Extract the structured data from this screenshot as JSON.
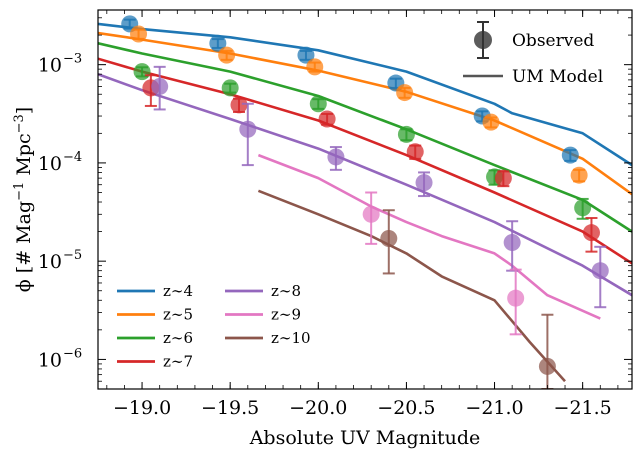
{
  "chart_data": {
    "type": "line",
    "xlabel": "Absolute UV Magnitude",
    "ylabel_parts": {
      "a": "ϕ [# Mag",
      "b": "−1",
      "c": " Mpc",
      "d": "−3",
      "e": "]"
    },
    "x_ticks": [
      {
        "value": -19.0,
        "label": "−19.0"
      },
      {
        "value": -19.5,
        "label": "−19.5"
      },
      {
        "value": -20.0,
        "label": "−20.0"
      },
      {
        "value": -20.5,
        "label": "−20.5"
      },
      {
        "value": -21.0,
        "label": "−21.0"
      },
      {
        "value": -21.5,
        "label": "−21.5"
      }
    ],
    "y_ticks": [
      {
        "value": 1e-06,
        "base": "10",
        "exp": "−6"
      },
      {
        "value": 1e-05,
        "base": "10",
        "exp": "−5"
      },
      {
        "value": 0.0001,
        "base": "10",
        "exp": "−4"
      },
      {
        "value": 0.001,
        "base": "10",
        "exp": "−3"
      }
    ],
    "xlim": [
      -18.75,
      -21.78
    ],
    "ylim": [
      5e-07,
      0.0036
    ],
    "yscale": "log",
    "legend_markers": {
      "observed": "Observed",
      "model": "UM Model",
      "position": "top-right"
    },
    "series": [
      {
        "name": "z∼4",
        "color": "#1f77b4",
        "model": [
          [
            -18.75,
            0.0026
          ],
          [
            -19.0,
            0.0023
          ],
          [
            -19.5,
            0.0019
          ],
          [
            -20.0,
            0.0014
          ],
          [
            -20.5,
            0.00085
          ],
          [
            -21.0,
            0.0004
          ],
          [
            -21.1,
            0.00032
          ],
          [
            -21.5,
            0.0002
          ],
          [
            -21.78,
            9.5e-05
          ]
        ],
        "observed": [
          {
            "x": -18.93,
            "y": 0.0026,
            "err": [
              0.00027,
              0.00027
            ]
          },
          {
            "x": -19.43,
            "y": 0.00165,
            "err": [
              0.00017,
              0.00017
            ]
          },
          {
            "x": -19.93,
            "y": 0.00125,
            "err": [
              0.00013,
              0.00013
            ]
          },
          {
            "x": -20.44,
            "y": 0.00065,
            "err": [
              7e-05,
              7e-05
            ]
          },
          {
            "x": -20.93,
            "y": 0.0003,
            "err": [
              3.5e-05,
              3.5e-05
            ]
          },
          {
            "x": -21.43,
            "y": 0.00012,
            "err": [
              1.5e-05,
              1.5e-05
            ]
          }
        ]
      },
      {
        "name": "z∼5",
        "color": "#ff7f0e",
        "model": [
          [
            -18.75,
            0.0021
          ],
          [
            -19.0,
            0.0018
          ],
          [
            -19.5,
            0.0013
          ],
          [
            -20.0,
            0.00087
          ],
          [
            -20.5,
            0.00053
          ],
          [
            -21.0,
            0.00027
          ],
          [
            -21.5,
            0.00011
          ],
          [
            -21.78,
            4.8e-05
          ]
        ],
        "observed": [
          {
            "x": -18.98,
            "y": 0.00205,
            "err": [
              0.00022,
              0.00022
            ]
          },
          {
            "x": -19.48,
            "y": 0.00125,
            "err": [
              0.00013,
              0.00013
            ]
          },
          {
            "x": -19.98,
            "y": 0.00095,
            "err": [
              0.0001,
              0.0001
            ]
          },
          {
            "x": -20.49,
            "y": 0.00052,
            "err": [
              6e-05,
              6e-05
            ]
          },
          {
            "x": -20.98,
            "y": 0.00026,
            "err": [
              3e-05,
              3e-05
            ]
          },
          {
            "x": -21.48,
            "y": 7.5e-05,
            "err": [
              1e-05,
              1e-05
            ]
          }
        ]
      },
      {
        "name": "z∼6",
        "color": "#2ca02c",
        "model": [
          [
            -18.75,
            0.00165
          ],
          [
            -19.0,
            0.0013
          ],
          [
            -19.5,
            0.00085
          ],
          [
            -20.0,
            0.00048
          ],
          [
            -20.5,
            0.00022
          ],
          [
            -21.0,
            9.5e-05
          ],
          [
            -21.5,
            4.2e-05
          ],
          [
            -21.78,
            2e-05
          ]
        ],
        "observed": [
          {
            "x": -19.0,
            "y": 0.00085,
            "err": [
              9e-05,
              9e-05
            ]
          },
          {
            "x": -19.5,
            "y": 0.00058,
            "err": [
              6e-05,
              6e-05
            ]
          },
          {
            "x": -20.0,
            "y": 0.0004,
            "err": [
              4.5e-05,
              4.5e-05
            ]
          },
          {
            "x": -20.5,
            "y": 0.000195,
            "err": [
              2.5e-05,
              2.5e-05
            ]
          },
          {
            "x": -21.0,
            "y": 7.2e-05,
            "err": [
              1.2e-05,
              1.2e-05
            ]
          },
          {
            "x": -21.5,
            "y": 3.5e-05,
            "err": [
              8e-06,
              8e-06
            ]
          }
        ]
      },
      {
        "name": "z∼7",
        "color": "#d62728",
        "model": [
          [
            -18.75,
            0.00115
          ],
          [
            -19.0,
            0.00085
          ],
          [
            -19.5,
            0.0005
          ],
          [
            -20.0,
            0.00027
          ],
          [
            -20.5,
            0.00012
          ],
          [
            -21.0,
            5e-05
          ],
          [
            -21.5,
            2e-05
          ],
          [
            -21.78,
            9.5e-06
          ]
        ],
        "observed": [
          {
            "x": -19.05,
            "y": 0.00058,
            "err": [
              0.0002,
              0.0002
            ]
          },
          {
            "x": -19.55,
            "y": 0.00039,
            "err": [
              6e-05,
              6e-05
            ]
          },
          {
            "x": -20.05,
            "y": 0.00028,
            "err": [
              3.5e-05,
              3.5e-05
            ]
          },
          {
            "x": -20.55,
            "y": 0.00013,
            "err": [
              2e-05,
              2e-05
            ]
          },
          {
            "x": -21.05,
            "y": 7e-05,
            "err": [
              1.2e-05,
              1.2e-05
            ]
          },
          {
            "x": -21.55,
            "y": 1.95e-05,
            "err": [
              7e-06,
              8e-06
            ]
          }
        ]
      },
      {
        "name": "z∼8",
        "color": "#9467bd",
        "model": [
          [
            -18.75,
            0.0008
          ],
          [
            -19.0,
            0.00055
          ],
          [
            -19.5,
            0.00028
          ],
          [
            -20.0,
            0.00014
          ],
          [
            -20.5,
            6e-05
          ],
          [
            -21.0,
            2.5e-05
          ],
          [
            -21.5,
            9e-06
          ],
          [
            -21.78,
            4.5e-06
          ]
        ],
        "observed": [
          {
            "x": -19.1,
            "y": 0.0006,
            "err": [
              0.00025,
              0.00035
            ]
          },
          {
            "x": -19.6,
            "y": 0.00022,
            "err": [
              0.000125,
              0.00018
            ]
          },
          {
            "x": -20.1,
            "y": 0.000115,
            "err": [
              3e-05,
              3e-05
            ]
          },
          {
            "x": -20.6,
            "y": 6.3e-05,
            "err": [
              1.7e-05,
              1.7e-05
            ]
          },
          {
            "x": -21.1,
            "y": 1.55e-05,
            "err": [
              7.5e-06,
              1e-05
            ]
          },
          {
            "x": -21.6,
            "y": 8e-06,
            "err": [
              4.6e-06,
              6e-06
            ]
          }
        ]
      },
      {
        "name": "z∼9",
        "color": "#e377c2",
        "model": [
          [
            -19.66,
            0.00012
          ],
          [
            -20.0,
            7e-05
          ],
          [
            -20.3,
            3.6e-05
          ],
          [
            -20.5,
            2.5e-05
          ],
          [
            -20.7,
            1.8e-05
          ],
          [
            -21.0,
            1.2e-05
          ],
          [
            -21.1,
            9e-06
          ],
          [
            -21.3,
            4.5e-06
          ],
          [
            -21.6,
            2.6e-06
          ]
        ],
        "observed": [
          {
            "x": -20.3,
            "y": 3e-05,
            "err": [
              1.5e-05,
              2e-05
            ]
          },
          {
            "x": -21.12,
            "y": 4.2e-06,
            "err": [
              2.4e-06,
              4e-06
            ]
          }
        ]
      },
      {
        "name": "z∼10",
        "color": "#8c564b",
        "model": [
          [
            -19.66,
            5.2e-05
          ],
          [
            -20.0,
            3e-05
          ],
          [
            -20.3,
            1.8e-05
          ],
          [
            -20.5,
            1.2e-05
          ],
          [
            -20.7,
            7e-06
          ],
          [
            -21.0,
            4e-06
          ],
          [
            -21.2,
            1.5e-06
          ],
          [
            -21.4,
            6e-07
          ]
        ],
        "observed": [
          {
            "x": -20.4,
            "y": 1.7e-05,
            "err": [
              9.5e-06,
              1.6e-05
            ]
          },
          {
            "x": -21.3,
            "y": 8.5e-07,
            "err": [
              3.5e-07,
              2e-06
            ]
          }
        ]
      }
    ]
  }
}
